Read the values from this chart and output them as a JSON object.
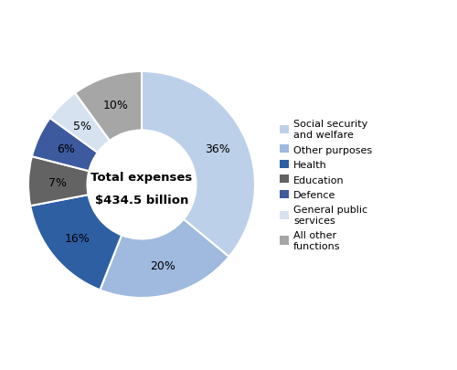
{
  "slices": [
    {
      "label": "Social security\nand welfare",
      "value": 36,
      "color": "#bdd0e9"
    },
    {
      "label": "Other purposes",
      "value": 20,
      "color": "#9fb9df"
    },
    {
      "label": "Health",
      "value": 16,
      "color": "#2e5fa3"
    },
    {
      "label": "Education",
      "value": 7,
      "color": "#636363"
    },
    {
      "label": "Defence",
      "value": 6,
      "color": "#3d5a9e"
    },
    {
      "label": "General public\nservices",
      "value": 5,
      "color": "#d6e2f0"
    },
    {
      "label": "All other\nfunctions",
      "value": 10,
      "color": "#a6a6a6"
    }
  ],
  "center_text_line1": "Total expenses",
  "center_text_line2": "$434.5 billion",
  "pct_labels": [
    "36%",
    "20%",
    "16%",
    "7%",
    "6%",
    "5%",
    "10%"
  ],
  "background_color": "#ffffff",
  "text_color": "#000000",
  "wedge_edge_color": "#ffffff",
  "legend_labels": [
    "Social security\nand welfare",
    "Other purposes",
    "Health",
    "Education",
    "Defence",
    "General public\nservices",
    "All other\nfunctions"
  ],
  "legend_colors": [
    "#bdd0e9",
    "#9fb9df",
    "#2e5fa3",
    "#636363",
    "#3d5a9e",
    "#d6e2f0",
    "#a6a6a6"
  ]
}
